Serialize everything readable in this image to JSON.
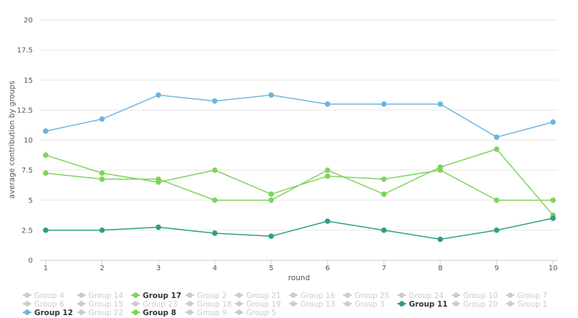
{
  "chart_data": {
    "type": "line",
    "xlabel": "round",
    "ylabel": "average contribution by groups",
    "x": [
      1,
      2,
      3,
      4,
      5,
      6,
      7,
      8,
      9,
      10
    ],
    "ylim": [
      0,
      20
    ],
    "yticks": [
      0,
      2.5,
      5,
      7.5,
      10,
      12.5,
      15,
      17.5,
      20
    ],
    "grid": true,
    "legend_position": "bottom",
    "series": [
      {
        "name": "Group 12",
        "color": "#6cb4e0",
        "values": [
          10.75,
          11.75,
          13.75,
          13.25,
          13.75,
          13.0,
          13.0,
          13.0,
          10.25,
          11.5
        ]
      },
      {
        "name": "Group 17",
        "color": "#7ed35c",
        "values": [
          8.75,
          7.25,
          6.5,
          7.5,
          5.5,
          7.0,
          6.75,
          7.5,
          5.0,
          5.0
        ]
      },
      {
        "name": "Group 8",
        "color": "#7ed35c",
        "values": [
          7.25,
          6.75,
          6.75,
          5.0,
          5.0,
          7.5,
          5.5,
          7.75,
          9.25,
          3.75
        ]
      },
      {
        "name": "Group 11",
        "color": "#2b9e87",
        "values": [
          2.5,
          2.5,
          2.75,
          2.25,
          2.0,
          3.25,
          2.5,
          1.75,
          2.5,
          3.5
        ]
      }
    ],
    "legend": [
      {
        "name": "Group 4",
        "active": false
      },
      {
        "name": "Group 14",
        "active": false
      },
      {
        "name": "Group 17",
        "active": true,
        "color": "#7ed35c"
      },
      {
        "name": "Group 2",
        "active": false
      },
      {
        "name": "Group 21",
        "active": false
      },
      {
        "name": "Group 16",
        "active": false
      },
      {
        "name": "Group 25",
        "active": false
      },
      {
        "name": "Group 24",
        "active": false
      },
      {
        "name": "Group 10",
        "active": false
      },
      {
        "name": "Group 7",
        "active": false
      },
      {
        "name": "Group 6",
        "active": false
      },
      {
        "name": "Group 15",
        "active": false
      },
      {
        "name": "Group 23",
        "active": false
      },
      {
        "name": "Group 18",
        "active": false
      },
      {
        "name": "Group 19",
        "active": false
      },
      {
        "name": "Group 13",
        "active": false
      },
      {
        "name": "Group 3",
        "active": false
      },
      {
        "name": "Group 11",
        "active": true,
        "color": "#2b9e87"
      },
      {
        "name": "Group 20",
        "active": false
      },
      {
        "name": "Group 1",
        "active": false
      },
      {
        "name": "Group 12",
        "active": true,
        "color": "#6cb4e0"
      },
      {
        "name": "Group 22",
        "active": false
      },
      {
        "name": "Group 8",
        "active": true,
        "color": "#7ed35c"
      },
      {
        "name": "Group 9",
        "active": false
      },
      {
        "name": "Group 5",
        "active": false
      }
    ],
    "inactive_color": "#cccccc"
  }
}
